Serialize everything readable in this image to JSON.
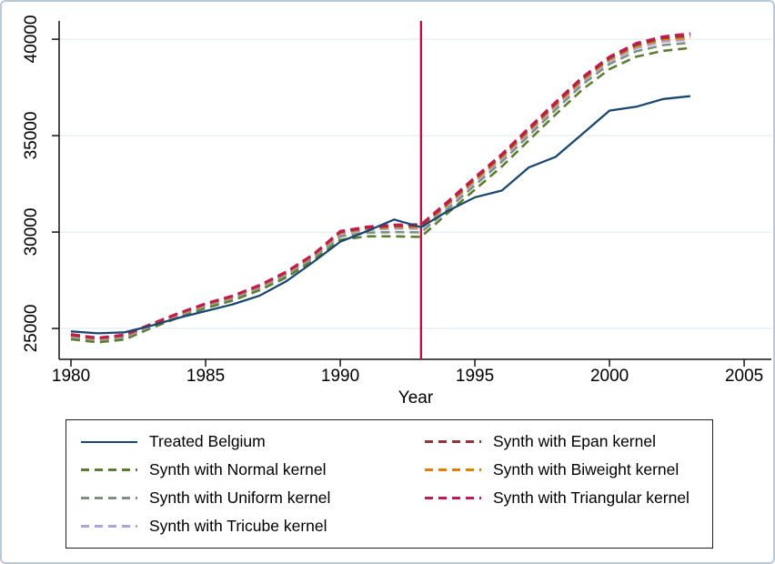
{
  "figure": {
    "background": "#ffffff",
    "border_color": "#bac9da",
    "axis_color": "#141414",
    "grid_color": "#e4edf2"
  },
  "chart_data": {
    "type": "line",
    "title": "",
    "xlabel": "Year",
    "ylabel": "",
    "grid": true,
    "x": [
      1980,
      1981,
      1982,
      1983,
      1984,
      1985,
      1986,
      1987,
      1988,
      1989,
      1990,
      1991,
      1992,
      1993,
      1994,
      1995,
      1996,
      1997,
      1998,
      1999,
      2000,
      2001,
      2002,
      2003
    ],
    "xlim": [
      1979.56,
      2006.01
    ],
    "ylim": [
      23400,
      40950
    ],
    "xticks": [
      1980,
      1985,
      1990,
      1995,
      2000,
      2005
    ],
    "yticks": [
      25000,
      30000,
      35000,
      40000
    ],
    "treatment_line": {
      "x": 1993,
      "color": "#c01048"
    },
    "series": [
      {
        "key": "treated",
        "name": "Treated Belgium",
        "color": "#1a476f",
        "style": "solid",
        "values": [
          24850,
          24750,
          24800,
          25150,
          25550,
          25900,
          26250,
          26700,
          27450,
          28450,
          29500,
          30050,
          30650,
          30250,
          31100,
          31800,
          32150,
          33350,
          33900,
          35100,
          36300,
          36500,
          36900,
          37050
        ]
      },
      {
        "key": "normal",
        "name": "Synth with Normal kernel",
        "color": "#5c7b33",
        "style": "dashed",
        "values": [
          24440,
          24280,
          24430,
          25030,
          25570,
          26050,
          26450,
          26980,
          27650,
          28530,
          29600,
          29780,
          29780,
          29750,
          31000,
          32200,
          33400,
          34750,
          36100,
          37400,
          38450,
          39100,
          39400,
          39550
        ]
      },
      {
        "key": "uniform",
        "name": "Synth with Uniform kernel",
        "color": "#7e9181",
        "style": "dashed",
        "values": [
          24540,
          24380,
          24530,
          25120,
          25670,
          26150,
          26550,
          27090,
          27770,
          28660,
          29780,
          29970,
          30000,
          29980,
          31200,
          32430,
          33650,
          35000,
          36350,
          37660,
          38720,
          39380,
          39700,
          39820
        ]
      },
      {
        "key": "tricube",
        "name": "Synth with Tricube kernel",
        "color": "#aba5dc",
        "style": "dashed",
        "values": [
          24590,
          24430,
          24590,
          25170,
          25720,
          26210,
          26610,
          27150,
          27840,
          28740,
          29900,
          30110,
          30180,
          30170,
          31360,
          32600,
          33800,
          35150,
          36500,
          37810,
          38870,
          39540,
          39880,
          39980
        ]
      },
      {
        "key": "epan",
        "name": "Synth with Epan kernel",
        "color": "#90353b",
        "style": "dashed",
        "values": [
          24660,
          24490,
          24650,
          25220,
          25780,
          26270,
          26670,
          27220,
          27910,
          28810,
          30000,
          30220,
          30320,
          30330,
          31520,
          32770,
          33970,
          35320,
          36670,
          37980,
          39030,
          39720,
          40070,
          40190
        ]
      },
      {
        "key": "biweight",
        "name": "Synth with Biweight kernel",
        "color": "#e37e00",
        "style": "dashed",
        "values": [
          24630,
          24460,
          24620,
          25200,
          25750,
          26240,
          26640,
          27190,
          27880,
          28780,
          29960,
          30170,
          30260,
          30260,
          31450,
          32690,
          33890,
          35240,
          36590,
          37900,
          38960,
          39640,
          39990,
          40080
        ]
      },
      {
        "key": "triangular",
        "name": "Synth with Triangular kernel",
        "color": "#c41a52",
        "style": "dashed",
        "values": [
          24700,
          24520,
          24680,
          25250,
          25800,
          26300,
          26700,
          27250,
          27950,
          28850,
          30050,
          30280,
          30380,
          30400,
          31600,
          32850,
          34050,
          35400,
          36750,
          38050,
          39100,
          39800,
          40150,
          40300
        ]
      }
    ],
    "legend": {
      "position": "bottom",
      "columns": 2,
      "column1": [
        "treated",
        "normal",
        "uniform",
        "tricube"
      ],
      "column2": [
        "epan",
        "biweight",
        "triangular"
      ]
    }
  }
}
